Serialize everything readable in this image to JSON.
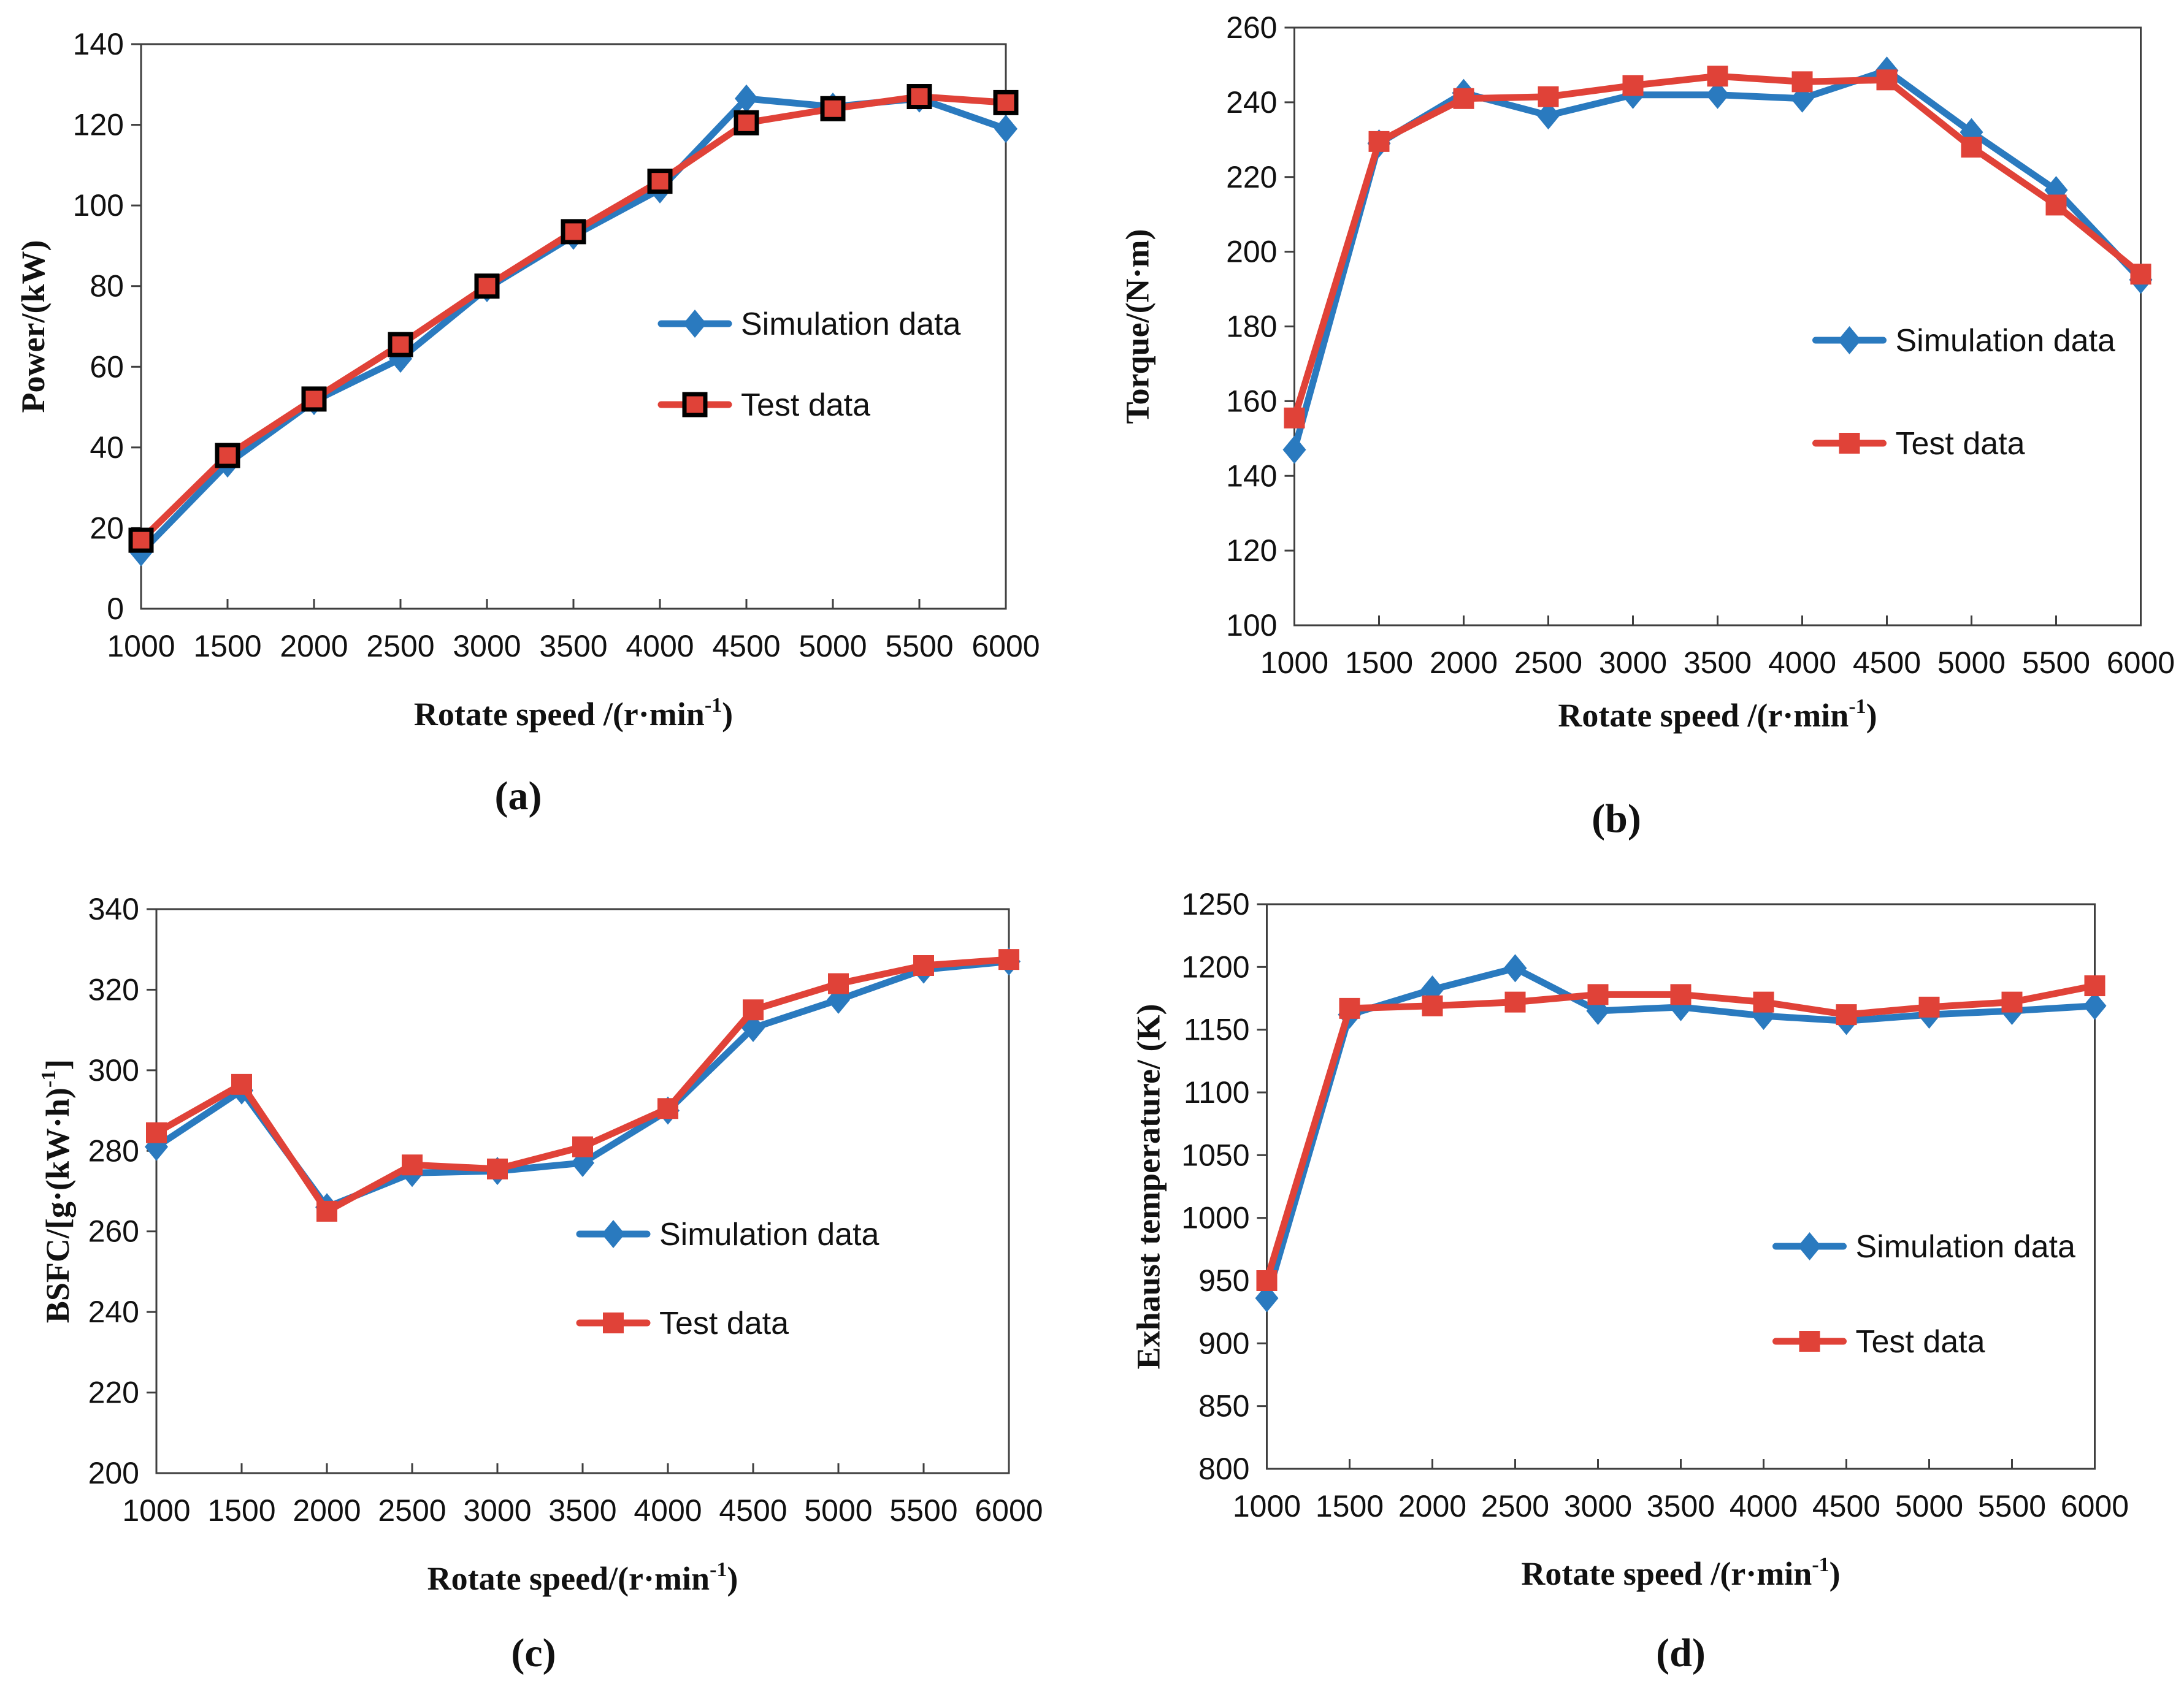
{
  "figure": {
    "colors": {
      "simulation": "#2A7ABF",
      "test": "#E04238",
      "axis": "#3F3F3F",
      "text": "#111111",
      "background": "#FFFFFF",
      "marker_outline": "#000000"
    },
    "legend_labels": {
      "simulation": "Simulation data",
      "test": "Test data"
    }
  },
  "chart_data": [
    {
      "type": "line",
      "panel_key": "a",
      "panel_label": "(a)",
      "xlabel_parts": [
        {
          "t": "Rotate speed /(r·min"
        },
        {
          "t": "-1",
          "sup": true
        },
        {
          "t": ")"
        }
      ],
      "ylabel_parts": [
        {
          "t": "Power/(kW)"
        }
      ],
      "x": [
        1000,
        1500,
        2000,
        2500,
        3000,
        3500,
        4000,
        4500,
        5000,
        5500,
        6000
      ],
      "xlim": [
        1000,
        6000
      ],
      "ylim": [
        0,
        140
      ],
      "ytick_step": 20,
      "grid": false,
      "legend_position": "inside-right",
      "series": [
        {
          "name": "Simulation data",
          "color_key": "simulation",
          "marker": "diamond",
          "marker_outlined": false,
          "values": [
            14,
            36,
            51.5,
            62,
            79.5,
            92.5,
            104,
            126.5,
            124.5,
            126.5,
            119
          ]
        },
        {
          "name": "Test data",
          "color_key": "test",
          "marker": "square",
          "marker_outlined": true,
          "values": [
            17,
            38,
            52,
            65.5,
            80,
            93.5,
            106,
            120.5,
            124,
            127,
            125.5
          ]
        }
      ]
    },
    {
      "type": "line",
      "panel_key": "b",
      "panel_label": "(b)",
      "xlabel_parts": [
        {
          "t": "Rotate speed /(r·min"
        },
        {
          "t": "-1",
          "sup": true
        },
        {
          "t": ")"
        }
      ],
      "ylabel_parts": [
        {
          "t": "Torque/(N·m)"
        }
      ],
      "x": [
        1000,
        1500,
        2000,
        2500,
        3000,
        3500,
        4000,
        4500,
        5000,
        5500,
        6000
      ],
      "xlim": [
        1000,
        6000
      ],
      "ylim": [
        100,
        260
      ],
      "ytick_step": 20,
      "grid": false,
      "legend_position": "inside-right",
      "series": [
        {
          "name": "Simulation data",
          "color_key": "simulation",
          "marker": "diamond",
          "marker_outlined": false,
          "values": [
            147,
            229,
            242.5,
            236.5,
            242,
            242,
            241,
            248.5,
            232,
            216.5,
            192.5
          ]
        },
        {
          "name": "Test data",
          "color_key": "test",
          "marker": "square",
          "marker_outlined": false,
          "values": [
            155.5,
            229.5,
            241,
            241.5,
            244.5,
            247,
            245.5,
            246,
            228,
            212.5,
            194
          ]
        }
      ]
    },
    {
      "type": "line",
      "panel_key": "c",
      "panel_label": "(c)",
      "xlabel_parts": [
        {
          "t": "Rotate speed/(r·min"
        },
        {
          "t": "-1",
          "sup": true
        },
        {
          "t": ")"
        }
      ],
      "ylabel_parts": [
        {
          "t": "BSFC/[g·(kW·h)"
        },
        {
          "t": "-1",
          "sup": true
        },
        {
          "t": "]"
        }
      ],
      "x": [
        1000,
        1500,
        2000,
        2500,
        3000,
        3500,
        4000,
        4500,
        5000,
        5500,
        6000
      ],
      "xlim": [
        1000,
        6000
      ],
      "ylim": [
        200,
        340
      ],
      "ytick_step": 20,
      "grid": false,
      "legend_position": "inside-right",
      "series": [
        {
          "name": "Simulation data",
          "color_key": "simulation",
          "marker": "diamond",
          "marker_outlined": false,
          "values": [
            281,
            295,
            266,
            274.5,
            275,
            277,
            290,
            310.5,
            317.5,
            325,
            327
          ]
        },
        {
          "name": "Test data",
          "color_key": "test",
          "marker": "square",
          "marker_outlined": false,
          "values": [
            284.5,
            296.5,
            265,
            276.5,
            275.5,
            281,
            290.5,
            315,
            321.5,
            326,
            327.5
          ]
        }
      ]
    },
    {
      "type": "line",
      "panel_key": "d",
      "panel_label": "(d)",
      "xlabel_parts": [
        {
          "t": "Rotate speed /(r·min"
        },
        {
          "t": "-1",
          "sup": true
        },
        {
          "t": ")"
        }
      ],
      "ylabel_parts": [
        {
          "t": "Exhaust temperature/ (K)"
        }
      ],
      "x": [
        1000,
        1500,
        2000,
        2500,
        3000,
        3500,
        4000,
        4500,
        5000,
        5500,
        6000
      ],
      "xlim": [
        1000,
        6000
      ],
      "ylim": [
        800,
        1250
      ],
      "ytick_step": 50,
      "grid": false,
      "legend_position": "inside-right",
      "series": [
        {
          "name": "Simulation data",
          "color_key": "simulation",
          "marker": "diamond",
          "marker_outlined": false,
          "values": [
            936,
            1162,
            1182,
            1199,
            1165,
            1168,
            1161,
            1157,
            1162,
            1165,
            1169
          ]
        },
        {
          "name": "Test data",
          "color_key": "test",
          "marker": "square",
          "marker_outlined": false,
          "values": [
            950,
            1167,
            1169,
            1172,
            1178,
            1178,
            1172,
            1162,
            1168,
            1172,
            1185
          ]
        }
      ]
    }
  ]
}
